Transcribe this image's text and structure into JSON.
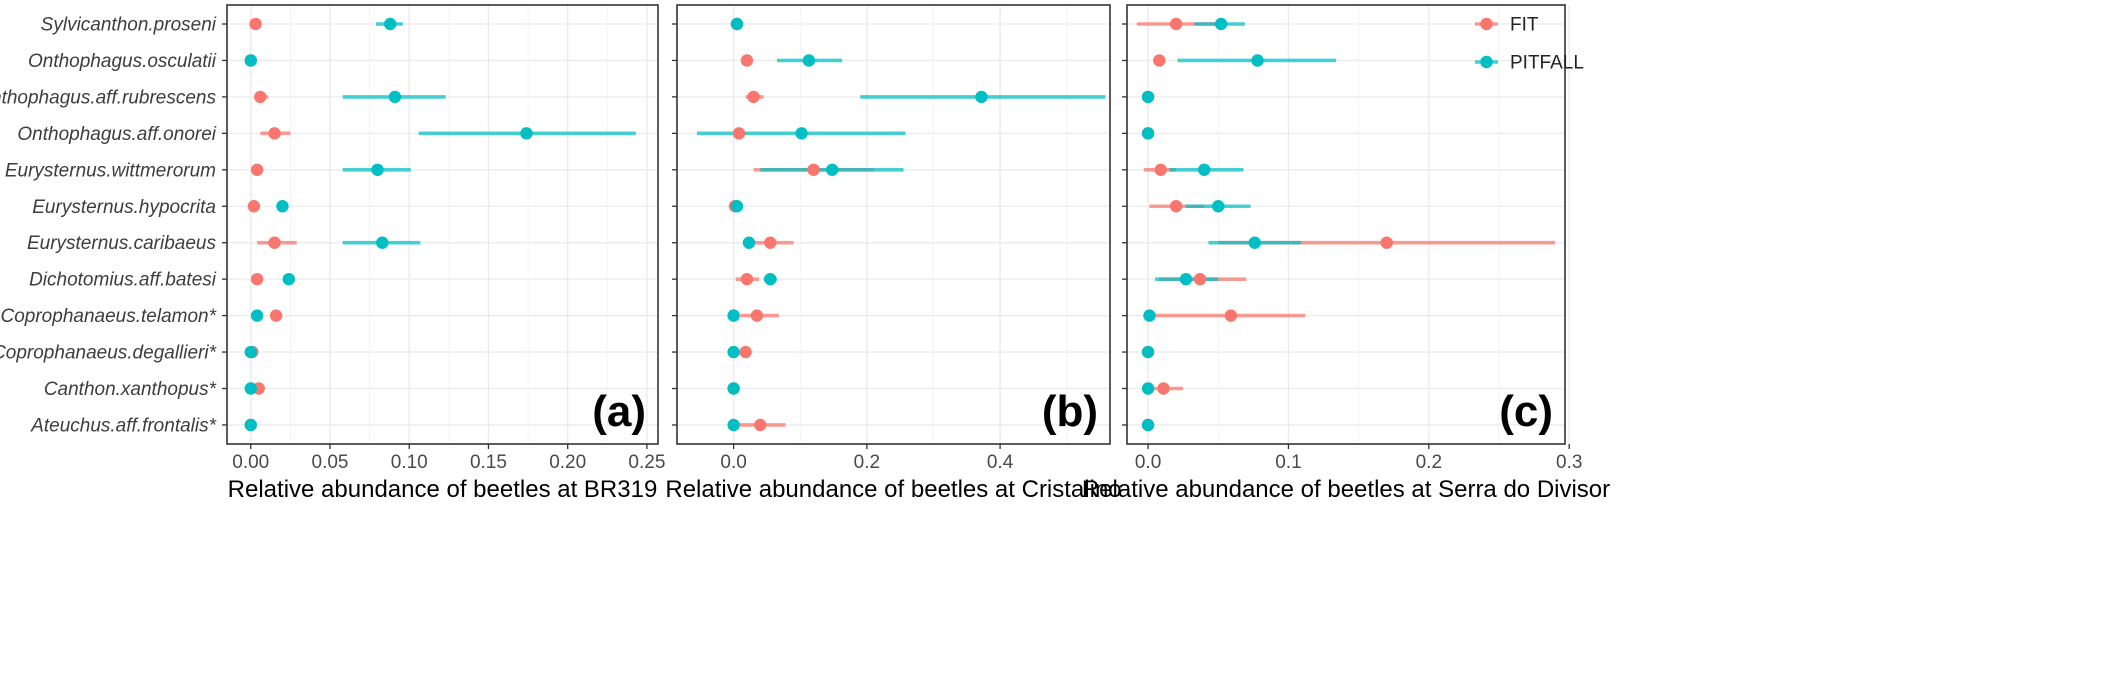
{
  "colors": {
    "fit": "#F8766D",
    "pitfall": "#00BFC4",
    "grid": "#EBEBEB",
    "frame": "#333333"
  },
  "legend": {
    "position": "top-right",
    "items": [
      {
        "key": "fit",
        "label": "FIT"
      },
      {
        "key": "pitfall",
        "label": "PITFALL"
      }
    ]
  },
  "chart_data": [
    {
      "type": "scatter",
      "panel_tag": "(a)",
      "xlabel": "Relative abundance of beetles at BR319",
      "xlim": [
        -0.015,
        0.257
      ],
      "xticks": [
        0,
        0.05,
        0.1,
        0.15,
        0.2,
        0.25
      ],
      "xtick_labels": [
        "0.00",
        "0.05",
        "0.10",
        "0.15",
        "0.20",
        "0.25"
      ],
      "grid": true,
      "categories": [
        "Sylvicanthon.proseni",
        "Onthophagus.osculatii",
        "Onthophagus.aff.rubrescens",
        "Onthophagus.aff.onorei",
        "Eurysternus.wittmerorum",
        "Eurysternus.hypocrita",
        "Eurysternus.caribaeus",
        "Dichotomius.aff.batesi",
        "Coprophanaeus.telamon*",
        "Coprophanaeus.degallieri*",
        "Canthon.xanthopus*",
        "Ateuchus.aff.frontalis*"
      ],
      "series": [
        {
          "name": "FIT",
          "key": "fit",
          "values": [
            0.003,
            0.0,
            0.006,
            0.015,
            0.004,
            0.002,
            0.015,
            0.004,
            0.016,
            0.001,
            0.005,
            0.0
          ],
          "lower": [
            0.002,
            0.0,
            0.003,
            0.006,
            0.002,
            0.0,
            0.004,
            0.002,
            0.014,
            0.0,
            0.003,
            0.0
          ],
          "upper": [
            0.004,
            0.001,
            0.011,
            0.025,
            0.006,
            0.003,
            0.029,
            0.005,
            0.018,
            0.002,
            0.007,
            0.001
          ]
        },
        {
          "name": "PITFALL",
          "key": "pitfall",
          "values": [
            0.088,
            0.0,
            0.091,
            0.174,
            0.08,
            0.02,
            0.083,
            0.024,
            0.004,
            0.0,
            0.0,
            0.0
          ],
          "lower": [
            0.079,
            0.0,
            0.058,
            0.106,
            0.058,
            0.018,
            0.058,
            0.021,
            0.002,
            0.0,
            0.0,
            0.0
          ],
          "upper": [
            0.096,
            0.001,
            0.123,
            0.243,
            0.101,
            0.023,
            0.107,
            0.027,
            0.006,
            0.001,
            0.001,
            0.001
          ]
        }
      ]
    },
    {
      "type": "scatter",
      "panel_tag": "(b)",
      "xlabel": "Relative abundance of beetles at Cristalino",
      "xlim": [
        -0.085,
        0.565
      ],
      "xticks": [
        0,
        0.2,
        0.4
      ],
      "xtick_labels": [
        "0.0",
        "0.2",
        "0.4"
      ],
      "grid": true,
      "categories": [
        "Sylvicanthon.proseni",
        "Onthophagus.osculatii",
        "Onthophagus.aff.rubrescens",
        "Onthophagus.aff.onorei",
        "Eurysternus.wittmerorum",
        "Eurysternus.hypocrita",
        "Eurysternus.caribaeus",
        "Dichotomius.aff.batesi",
        "Coprophanaeus.telamon*",
        "Coprophanaeus.degallieri*",
        "Canthon.xanthopus*",
        "Ateuchus.aff.frontalis*"
      ],
      "series": [
        {
          "name": "FIT",
          "key": "fit",
          "values": [
            0.005,
            0.02,
            0.03,
            0.008,
            0.12,
            0.002,
            0.055,
            0.02,
            0.035,
            0.018,
            0.0,
            0.04
          ],
          "lower": [
            0.003,
            0.015,
            0.018,
            0.0,
            0.03,
            0.0,
            0.025,
            0.003,
            0.01,
            0.01,
            0.0,
            0.008
          ],
          "upper": [
            0.007,
            0.025,
            0.045,
            0.018,
            0.21,
            0.004,
            0.09,
            0.038,
            0.068,
            0.026,
            0.001,
            0.078
          ]
        },
        {
          "name": "PITFALL",
          "key": "pitfall",
          "values": [
            0.005,
            0.113,
            0.372,
            0.102,
            0.148,
            0.005,
            0.023,
            0.055,
            0.0,
            0.0,
            0.0,
            0.0
          ],
          "lower": [
            0.002,
            0.065,
            0.19,
            -0.055,
            0.04,
            0.002,
            0.018,
            0.045,
            0.0,
            0.0,
            0.0,
            0.0
          ],
          "upper": [
            0.008,
            0.163,
            0.558,
            0.258,
            0.255,
            0.008,
            0.028,
            0.065,
            0.001,
            0.001,
            0.001,
            0.001
          ]
        }
      ]
    },
    {
      "type": "scatter",
      "panel_tag": "(c)",
      "xlabel": "Relative abundance of beetles at Serra do Divisor",
      "xlim": [
        -0.015,
        0.297
      ],
      "xticks": [
        0,
        0.1,
        0.2,
        0.3
      ],
      "xtick_labels": [
        "0.0",
        "0.1",
        "0.2",
        "0.3"
      ],
      "grid": true,
      "categories": [
        "Sylvicanthon.proseni",
        "Onthophagus.osculatii",
        "Onthophagus.aff.rubrescens",
        "Onthophagus.aff.onorei",
        "Eurysternus.wittmerorum",
        "Eurysternus.hypocrita",
        "Eurysternus.caribaeus",
        "Dichotomius.aff.batesi",
        "Coprophanaeus.telamon*",
        "Coprophanaeus.degallieri*",
        "Canthon.xanthopus*",
        "Ateuchus.aff.frontalis*"
      ],
      "series": [
        {
          "name": "FIT",
          "key": "fit",
          "values": [
            0.02,
            0.008,
            0.0,
            0.0,
            0.009,
            0.02,
            0.17,
            0.037,
            0.059,
            0.0,
            0.011,
            0.0
          ],
          "lower": [
            -0.008,
            0.005,
            0.0,
            0.0,
            -0.003,
            0.001,
            0.05,
            0.008,
            0.005,
            0.0,
            0.0,
            0.0
          ],
          "upper": [
            0.05,
            0.012,
            0.001,
            0.001,
            0.02,
            0.04,
            0.29,
            0.07,
            0.112,
            0.001,
            0.025,
            0.001
          ]
        },
        {
          "name": "PITFALL",
          "key": "pitfall",
          "values": [
            0.052,
            0.078,
            0.0,
            0.0,
            0.04,
            0.05,
            0.076,
            0.027,
            0.001,
            0.0,
            0.0,
            0.0
          ],
          "lower": [
            0.033,
            0.021,
            0.0,
            0.0,
            0.015,
            0.027,
            0.043,
            0.005,
            0.0,
            0.0,
            0.0,
            0.0
          ],
          "upper": [
            0.069,
            0.134,
            0.001,
            0.001,
            0.068,
            0.073,
            0.109,
            0.05,
            0.002,
            0.001,
            0.001,
            0.001
          ]
        }
      ]
    }
  ]
}
